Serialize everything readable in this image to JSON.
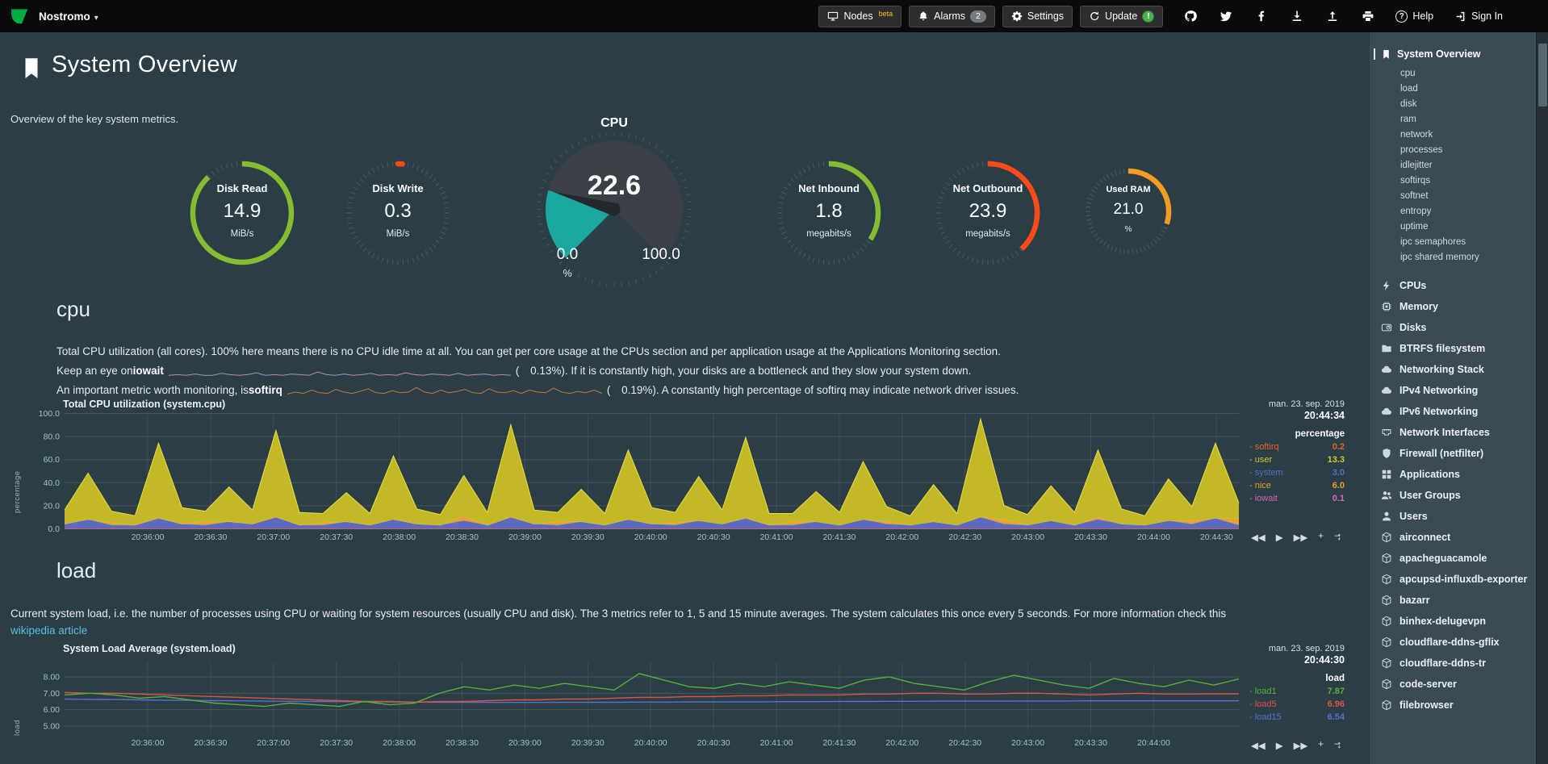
{
  "navbar": {
    "brand": "Nostromo",
    "nodes_label": "Nodes",
    "nodes_beta": "beta",
    "alarms_label": "Alarms",
    "alarms_count": "2",
    "settings_label": "Settings",
    "update_label": "Update",
    "update_badge": "!",
    "help_label": "Help",
    "signin_label": "Sign In"
  },
  "header": {
    "title": "System Overview",
    "subtitle": "Overview of the key system metrics."
  },
  "gauges": {
    "disk_read": {
      "title": "Disk Read",
      "value": "14.9",
      "units": "MiB/s",
      "color": "#84BD32",
      "fraction": 0.88
    },
    "disk_write": {
      "title": "Disk Write",
      "value": "0.3",
      "units": "MiB/s",
      "color": "#FB4A1A",
      "fraction": 0.015
    },
    "cpu": {
      "title": "CPU",
      "value": "22.6",
      "min": "0.0",
      "max": "100.0",
      "units": "%",
      "percent": 22.6,
      "color": "#1BA8A0"
    },
    "net_inbound": {
      "title": "Net Inbound",
      "value": "1.8",
      "units": "megabits/s",
      "color": "#84BD32",
      "fraction": 0.34
    },
    "net_outbound": {
      "title": "Net Outbound",
      "value": "23.9",
      "units": "megabits/s",
      "color": "#FB4A1A",
      "fraction": 0.38
    },
    "used_ram": {
      "title": "Used RAM",
      "value": "21.0",
      "units": "%",
      "color": "#F29C21",
      "fraction": 0.3
    }
  },
  "cpu_section": {
    "heading": "cpu",
    "desc1": "Total CPU utilization (all cores). 100% here means there is no CPU idle time at all. You can get per core usage at the CPUs section and per application usage at the Applications Monitoring section.",
    "desc2": {
      "pre": "Keep an eye on ",
      "term": "iowait",
      "open": "(",
      "value": "0.13%",
      "post": "). If it is constantly high, your disks are a bottleneck and they slow your system down."
    },
    "desc3": {
      "pre": "An important metric worth monitoring, is ",
      "term": "softirq",
      "open": "(",
      "value": "0.19%",
      "post": "). A constantly high percentage of softirq may indicate network driver issues."
    },
    "sparklines": {
      "iowait": {
        "color": "#B08BC9",
        "values": [
          0.1,
          0.2,
          0.1,
          0.3,
          0.1,
          0.1,
          0.4,
          0.2,
          0.1,
          0.2,
          0.5,
          0.1,
          0.2,
          0.1,
          0.3,
          0.2,
          0.1,
          0.6,
          0.2,
          0.1,
          0.3,
          0.1,
          0.2,
          0.4,
          0.1,
          0.2,
          0.1,
          0.5,
          0.2,
          0.1,
          0.3,
          0.2,
          0.1,
          0.4,
          0.1,
          0.2,
          0.3,
          0.1,
          0.2,
          0.1
        ]
      },
      "softirq": {
        "color": "#C07A33",
        "values": [
          0.2,
          0.5,
          0.3,
          0.8,
          0.4,
          0.3,
          0.9,
          0.5,
          0.3,
          0.6,
          1.0,
          0.4,
          0.3,
          0.7,
          0.4,
          0.5,
          1.2,
          0.5,
          0.3,
          0.8,
          0.4,
          0.6,
          0.9,
          0.4,
          0.3,
          1.0,
          0.5,
          0.4,
          0.7,
          0.3,
          0.8,
          0.5,
          0.4,
          1.1,
          0.5,
          0.3,
          0.6,
          0.4,
          0.8,
          0.3
        ]
      }
    }
  },
  "cpu_chart": {
    "title": "Total CPU utilization (system.cpu)",
    "date": "man. 23. sep. 2019",
    "time": "20:44:34",
    "legend_units": "percentage",
    "ylabel": "percentage",
    "legend": [
      {
        "name": "softirq",
        "value": "0.2",
        "color": "#E8632B"
      },
      {
        "name": "user",
        "value": "13.3",
        "color": "#D6C52E"
      },
      {
        "name": "system",
        "value": "3.0",
        "color": "#5C6BC0"
      },
      {
        "name": "nice",
        "value": "6.0",
        "color": "#E8A22E"
      },
      {
        "name": "iowait",
        "value": "0.1",
        "color": "#D36BB8"
      }
    ]
  },
  "load_section": {
    "heading": "load",
    "desc": "Current system load, i.e. the number of processes using CPU or waiting for system resources (usually CPU and disk). The 3 metrics refer to 1, 5 and 15 minute averages. The system calculates this once every 5 seconds. For more information check this",
    "desc_link": "wikipedia article"
  },
  "load_chart": {
    "title": "System Load Average (system.load)",
    "date": "man. 23. sep. 2019",
    "time": "20:44:30",
    "legend_units": "load",
    "ylabel": "load",
    "legend": [
      {
        "name": "load1",
        "value": "7.87",
        "color": "#57B13D"
      },
      {
        "name": "load5",
        "value": "6.96",
        "color": "#DE5448"
      },
      {
        "name": "load15",
        "value": "6.54",
        "color": "#5B6FD0"
      }
    ]
  },
  "chart_controls": [
    "◀◀",
    "▶",
    "▶▶",
    "+",
    "−"
  ],
  "resize_icon": "↕",
  "chart_data": [
    {
      "type": "area",
      "title": "Total CPU utilization (system.cpu)",
      "ylabel": "percentage",
      "ylim": [
        0,
        100
      ],
      "grid": true,
      "legend_position": "right",
      "y_ticks": [
        {
          "v": 0,
          "label": "0.0"
        },
        {
          "v": 20,
          "label": "20.0"
        },
        {
          "v": 40,
          "label": "40.0"
        },
        {
          "v": 60,
          "label": "60.0"
        },
        {
          "v": 80,
          "label": "80.0"
        },
        {
          "v": 100,
          "label": "100.0"
        }
      ],
      "x_tick_labels": [
        "20:36:00",
        "20:36:30",
        "20:37:00",
        "20:37:30",
        "20:38:00",
        "20:38:30",
        "20:39:00",
        "20:39:30",
        "20:40:00",
        "20:40:30",
        "20:41:00",
        "20:41:30",
        "20:42:00",
        "20:42:30",
        "20:43:00",
        "20:43:30",
        "20:44:00",
        "20:44:30"
      ],
      "series": [
        {
          "name": "iowait",
          "color": "#D36BB8",
          "constant": 0.1
        },
        {
          "name": "softirq",
          "color": "#E8632B",
          "constant": 0.2
        },
        {
          "name": "system",
          "color": "#5C6BC0",
          "line": "#7986CB",
          "values": [
            4,
            8,
            3,
            3,
            9,
            4,
            3,
            6,
            4,
            10,
            3,
            3,
            6,
            3,
            8,
            4,
            3,
            7,
            3,
            10,
            4,
            3,
            6,
            3,
            8,
            4,
            3,
            7,
            4,
            9,
            3,
            3,
            6,
            3,
            8,
            4,
            3,
            6,
            3,
            10,
            4,
            3,
            7,
            3,
            8,
            4,
            3,
            7,
            4,
            9,
            3
          ]
        },
        {
          "name": "nice",
          "color": "#E8A22E",
          "line": "#F0B45A",
          "values": [
            0,
            0,
            2,
            0,
            0,
            0,
            3,
            0,
            0,
            0,
            0,
            2,
            0,
            0,
            0,
            0,
            0,
            4,
            0,
            0,
            0,
            3,
            0,
            0,
            0,
            0,
            2,
            0,
            0,
            0,
            0,
            3,
            0,
            0,
            0,
            2,
            0,
            0,
            0,
            0,
            4,
            0,
            0,
            0,
            2,
            0,
            0,
            0,
            3,
            0,
            6
          ]
        },
        {
          "name": "user",
          "color": "#C3B927",
          "line": "#E8DE45",
          "values": [
            12,
            40,
            10,
            8,
            65,
            14,
            9,
            30,
            12,
            75,
            11,
            8,
            25,
            10,
            55,
            13,
            9,
            35,
            11,
            80,
            12,
            8,
            28,
            10,
            60,
            14,
            9,
            38,
            12,
            70,
            10,
            7,
            26,
            11,
            50,
            13,
            8,
            32,
            10,
            85,
            12,
            9,
            30,
            11,
            58,
            13,
            8,
            36,
            12,
            65,
            13
          ]
        }
      ]
    },
    {
      "type": "line",
      "title": "System Load Average (system.load)",
      "ylabel": "load",
      "ylim": [
        4.5,
        8.6
      ],
      "grid": true,
      "legend_position": "right",
      "y_ticks": [
        {
          "v": 5,
          "label": "5.00"
        },
        {
          "v": 6,
          "label": "6.00"
        },
        {
          "v": 7,
          "label": "7.00"
        },
        {
          "v": 8,
          "label": "8.00"
        }
      ],
      "x_tick_labels": [
        "20:36:00",
        "20:36:30",
        "20:37:00",
        "20:37:30",
        "20:38:00",
        "20:38:30",
        "20:39:00",
        "20:39:30",
        "20:40:00",
        "20:40:30",
        "20:41:00",
        "20:41:30",
        "20:42:00",
        "20:42:30",
        "20:43:00",
        "20:43:30",
        "20:44:00"
      ],
      "series": [
        {
          "name": "load15",
          "color": "#5B6FD0",
          "values": [
            6.65,
            6.63,
            6.62,
            6.6,
            6.58,
            6.57,
            6.55,
            6.54,
            6.52,
            6.51,
            6.5,
            6.49,
            6.48,
            6.47,
            6.46,
            6.45,
            6.45,
            6.44,
            6.44,
            6.44,
            6.45,
            6.45,
            6.45,
            6.46,
            6.46,
            6.47,
            6.47,
            6.48,
            6.48,
            6.49,
            6.49,
            6.5,
            6.5,
            6.51,
            6.51,
            6.52,
            6.52,
            6.52,
            6.53,
            6.53,
            6.53,
            6.54,
            6.54,
            6.54,
            6.54,
            6.54,
            6.54,
            6.54
          ]
        },
        {
          "name": "load5",
          "color": "#DE5448",
          "values": [
            7.05,
            7.0,
            7.0,
            6.95,
            6.9,
            6.85,
            6.8,
            6.75,
            6.7,
            6.65,
            6.6,
            6.55,
            6.5,
            6.5,
            6.45,
            6.5,
            6.5,
            6.55,
            6.6,
            6.6,
            6.65,
            6.65,
            6.7,
            6.75,
            6.75,
            6.8,
            6.8,
            6.85,
            6.85,
            6.9,
            6.9,
            6.9,
            6.95,
            6.95,
            7.0,
            7.0,
            6.95,
            6.95,
            7.0,
            7.0,
            6.95,
            6.9,
            6.95,
            7.0,
            6.95,
            6.95,
            6.96,
            6.96
          ]
        },
        {
          "name": "load1",
          "color": "#57B13D",
          "values": [
            6.9,
            7.0,
            6.9,
            6.7,
            6.8,
            6.6,
            6.4,
            6.3,
            6.2,
            6.4,
            6.3,
            6.2,
            6.5,
            6.3,
            6.4,
            7.0,
            7.4,
            7.2,
            7.5,
            7.3,
            7.6,
            7.4,
            7.2,
            8.2,
            7.8,
            7.4,
            7.3,
            7.6,
            7.4,
            7.7,
            7.5,
            7.3,
            7.8,
            8.0,
            7.6,
            7.4,
            7.2,
            7.7,
            8.1,
            7.8,
            7.5,
            7.3,
            7.9,
            7.6,
            7.4,
            7.8,
            7.5,
            7.87
          ]
        }
      ]
    }
  ],
  "sidebar": {
    "active": {
      "label": "System Overview",
      "icon": "bookmark"
    },
    "subitems": [
      "cpu",
      "load",
      "disk",
      "ram",
      "network",
      "processes",
      "idlejitter",
      "softirqs",
      "softnet",
      "entropy",
      "uptime",
      "ipc semaphores",
      "ipc shared memory"
    ],
    "items": [
      {
        "label": "CPUs",
        "icon": "bolt"
      },
      {
        "label": "Memory",
        "icon": "chip"
      },
      {
        "label": "Disks",
        "icon": "hdd"
      },
      {
        "label": "BTRFS filesystem",
        "icon": "folder"
      },
      {
        "label": "Networking Stack",
        "icon": "cloud"
      },
      {
        "label": "IPv4 Networking",
        "icon": "cloud"
      },
      {
        "label": "IPv6 Networking",
        "icon": "cloud"
      },
      {
        "label": "Network Interfaces",
        "icon": "port"
      },
      {
        "label": "Firewall (netfilter)",
        "icon": "shield"
      },
      {
        "label": "Applications",
        "icon": "apps"
      },
      {
        "label": "User Groups",
        "icon": "users"
      },
      {
        "label": "Users",
        "icon": "user"
      },
      {
        "label": "airconnect",
        "icon": "cube"
      },
      {
        "label": "apacheguacamole",
        "icon": "cube"
      },
      {
        "label": "apcupsd-influxdb-exporter",
        "icon": "cube"
      },
      {
        "label": "bazarr",
        "icon": "cube"
      },
      {
        "label": "binhex-delugevpn",
        "icon": "cube"
      },
      {
        "label": "cloudflare-ddns-gflix",
        "icon": "cube"
      },
      {
        "label": "cloudflare-ddns-tr",
        "icon": "cube"
      },
      {
        "label": "code-server",
        "icon": "cube"
      },
      {
        "label": "filebrowser",
        "icon": "cube"
      }
    ]
  }
}
